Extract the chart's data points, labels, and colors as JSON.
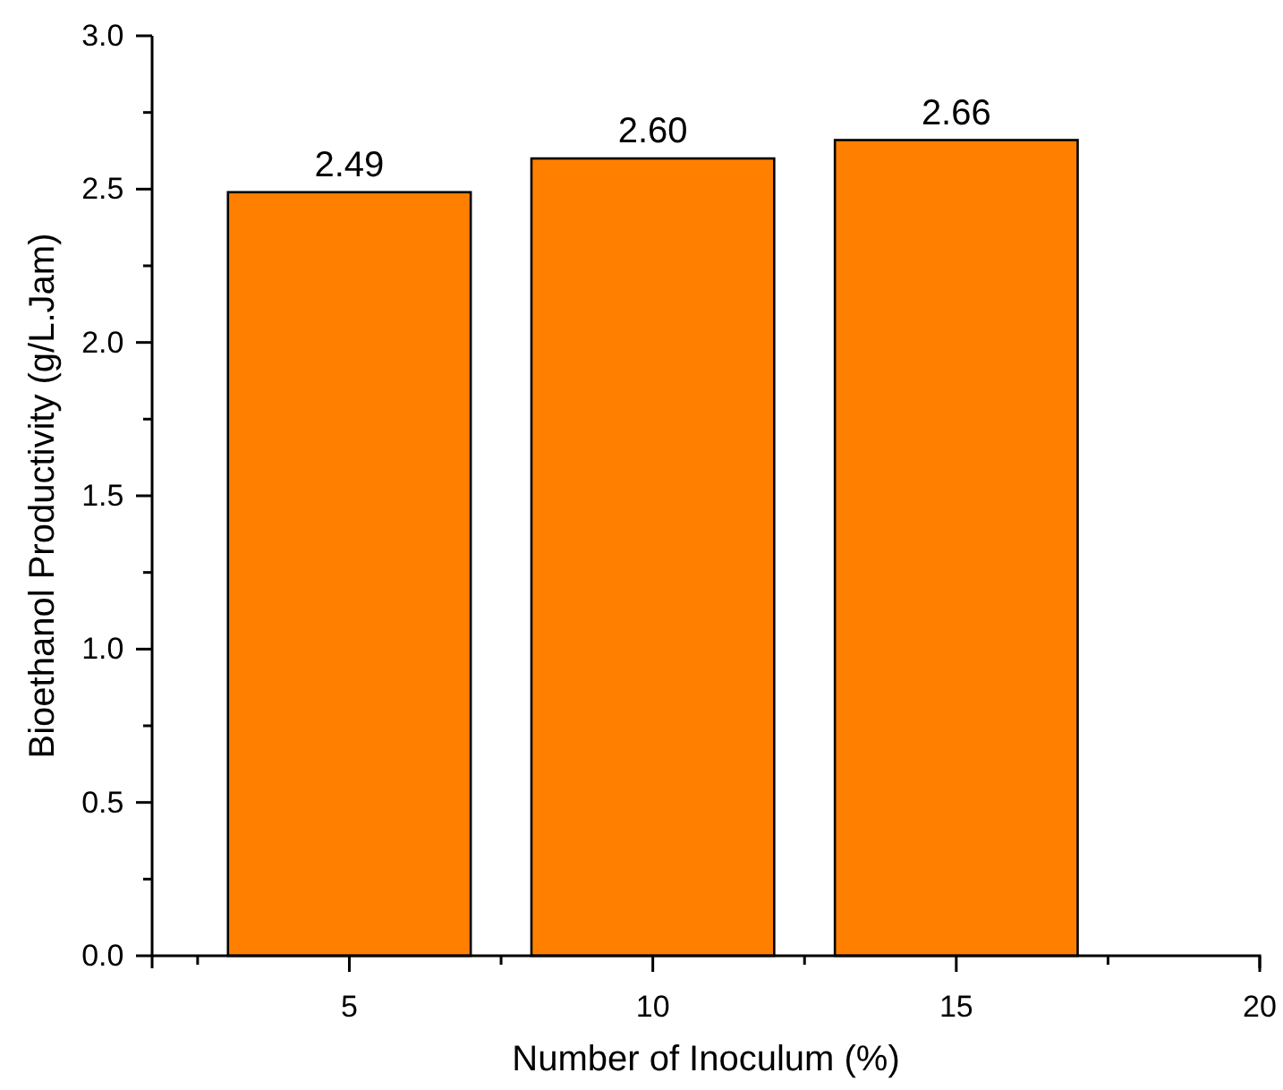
{
  "chart_data": {
    "type": "bar",
    "xlabel": "Number of Inoculum (%)",
    "ylabel": "Bioethanol Productivity (g/L.Jam)",
    "x": [
      5,
      10,
      15
    ],
    "values": [
      2.49,
      2.6,
      2.66
    ],
    "value_labels": [
      "2.49",
      "2.60",
      "2.66"
    ],
    "color": "#ff8000",
    "xlim": [
      1.75,
      20
    ],
    "xticks": [
      {
        "value": 2.5,
        "label": null
      },
      5,
      {
        "value": 7.5,
        "label": null
      },
      10,
      {
        "value": 12.5,
        "label": null
      },
      15,
      {
        "value": 17.5,
        "label": null
      },
      20
    ],
    "ylim": [
      0,
      3
    ],
    "yticks": [
      {
        "value": 0,
        "label": "0.0"
      },
      {
        "value": 0.25,
        "label": null
      },
      {
        "value": 0.5,
        "label": "0.5"
      },
      {
        "value": 0.75,
        "label": null
      },
      {
        "value": 1,
        "label": "1.0"
      },
      {
        "value": 1.25,
        "label": null
      },
      {
        "value": 1.5,
        "label": "1.5"
      },
      {
        "value": 1.75,
        "label": null
      },
      {
        "value": 2,
        "label": "2.0"
      },
      {
        "value": 2.25,
        "label": null
      },
      {
        "value": 2.5,
        "label": "2.5"
      },
      {
        "value": 2.75,
        "label": null
      },
      {
        "value": 3,
        "label": "3.0"
      }
    ],
    "grid": false
  }
}
